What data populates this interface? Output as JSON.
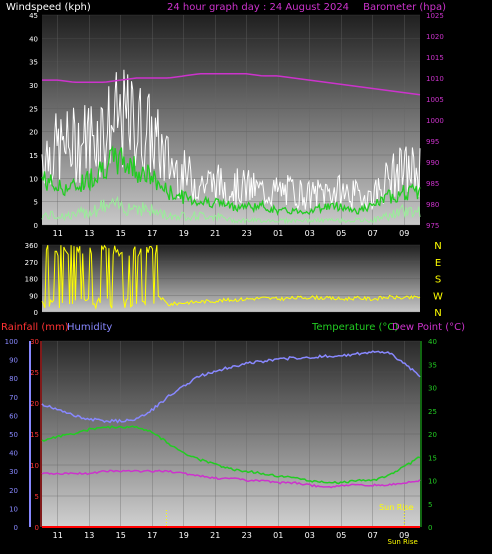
{
  "header": {
    "windspeed_label": "Windspeed (kph)",
    "title": "24 hour graph day : 24 August 2024",
    "barometer_label": "Barometer (hpa)"
  },
  "lower_header": {
    "rainfall_label": "Rainfall (mm)",
    "humidity_label": "Humidity",
    "temperature_label": "Temperature (°C)",
    "dewpoint_label": "Dew Point (°C)"
  },
  "sunrise_label": "Sun Rise",
  "x_ticks": [
    "11",
    "13",
    "15",
    "17",
    "19",
    "21",
    "23",
    "01",
    "03",
    "05",
    "07",
    "09"
  ],
  "colors": {
    "windspeed": "#ffffff",
    "wind_avg": "#22cc22",
    "wind_low": "#99ee99",
    "barometer": "#cc33cc",
    "direction": "#ffff00",
    "rainfall": "#ff0000",
    "humidity": "#8888ff",
    "temperature": "#22cc22",
    "dewpoint": "#cc33cc"
  },
  "chart_data": [
    {
      "type": "line",
      "name": "wind-barometer",
      "title": "24 hour graph day : 24 August 2024",
      "ylabel": "Windspeed (kph)",
      "y2label": "Barometer (hpa)",
      "ylim": [
        0,
        45
      ],
      "y2lim": [
        975,
        1025
      ],
      "y_ticks": [
        0,
        5,
        10,
        15,
        20,
        25,
        30,
        35,
        40,
        45
      ],
      "y2_ticks": [
        975,
        980,
        985,
        990,
        995,
        1000,
        1005,
        1010,
        1015,
        1020,
        1025
      ],
      "x_hours": [
        10,
        11,
        12,
        13,
        14,
        15,
        16,
        17,
        18,
        19,
        20,
        21,
        22,
        23,
        24,
        25,
        26,
        27,
        28,
        29,
        30,
        31,
        32,
        33,
        34
      ],
      "gust": [
        17,
        18,
        19,
        21,
        23,
        25,
        24,
        21,
        15,
        12,
        10,
        10,
        9,
        9,
        8,
        8,
        8,
        7,
        8,
        8,
        7,
        7,
        11,
        13,
        13
      ],
      "average": [
        10,
        8,
        8,
        10,
        13,
        14,
        12,
        10,
        7,
        6,
        5,
        5,
        4,
        4,
        4,
        3,
        3,
        3,
        4,
        4,
        3,
        4,
        6,
        7,
        7
      ],
      "low": [
        2,
        2,
        2,
        3,
        4,
        4,
        4,
        3,
        2,
        2,
        2,
        2,
        1,
        1,
        1,
        1,
        1,
        1,
        1,
        1,
        1,
        1,
        2,
        3,
        3
      ],
      "barometer": [
        1009.5,
        1009.5,
        1009,
        1009,
        1009,
        1009.5,
        1010,
        1010,
        1010,
        1010.5,
        1011,
        1011,
        1011,
        1011,
        1010.5,
        1010.5,
        1010,
        1009.5,
        1009,
        1008.5,
        1008,
        1007.5,
        1007,
        1006.5,
        1006
      ]
    },
    {
      "type": "line",
      "name": "wind-direction",
      "ylim": [
        0,
        360
      ],
      "y_ticks": [
        0,
        90,
        180,
        270,
        360
      ],
      "compass": [
        "N",
        "W",
        "S",
        "E",
        "N"
      ],
      "x_hours": [
        10,
        11,
        12,
        13,
        14,
        15,
        16,
        17,
        18,
        19,
        20,
        21,
        22,
        23,
        24,
        25,
        26,
        27,
        28,
        29,
        30,
        31,
        32,
        33,
        34
      ],
      "direction": [
        350,
        340,
        300,
        330,
        320,
        280,
        250,
        120,
        40,
        50,
        55,
        60,
        65,
        70,
        75,
        70,
        75,
        80,
        75,
        70,
        75,
        70,
        80,
        75,
        80
      ]
    },
    {
      "type": "line",
      "name": "temperature-humidity",
      "ylabel": "Rainfall (mm)",
      "y_left_ticks": [
        0,
        5,
        10,
        15,
        20,
        25,
        30
      ],
      "ylim_left": [
        0,
        30
      ],
      "humidity_ticks": [
        0,
        10,
        20,
        30,
        40,
        50,
        60,
        70,
        80,
        90,
        100
      ],
      "humidity_lim": [
        0,
        100
      ],
      "y_right_ticks": [
        0,
        5,
        10,
        15,
        20,
        25,
        30,
        35,
        40
      ],
      "ylim_right": [
        0,
        40
      ],
      "x_hours": [
        10,
        11,
        12,
        13,
        14,
        15,
        16,
        17,
        18,
        19,
        20,
        21,
        22,
        23,
        24,
        25,
        26,
        27,
        28,
        29,
        30,
        31,
        32,
        33,
        34
      ],
      "humidity": [
        66,
        63,
        60,
        58,
        57,
        57,
        58,
        63,
        70,
        76,
        81,
        84,
        86,
        88,
        89,
        90,
        91,
        91,
        92,
        92,
        93,
        94,
        94,
        88,
        81
      ],
      "temperature": [
        18.5,
        19.5,
        20,
        21,
        21.5,
        21.5,
        21.5,
        20.5,
        18,
        16,
        14.5,
        13.5,
        12.5,
        12,
        11.5,
        11,
        10.5,
        10,
        9.5,
        9.5,
        10,
        10,
        11,
        13,
        15
      ],
      "dewpoint": [
        11.5,
        11.5,
        11.5,
        11.5,
        12,
        12,
        12,
        12,
        12,
        11.5,
        11,
        10.5,
        10.5,
        10,
        10,
        9.5,
        9.5,
        9,
        8.5,
        9,
        9,
        9,
        9,
        9.5,
        10
      ],
      "rainfall": [
        0,
        0,
        0,
        0,
        0,
        0,
        0,
        0,
        0,
        0,
        0,
        0,
        0,
        0,
        0,
        0,
        0,
        0,
        0,
        0,
        0,
        0,
        0,
        0,
        0
      ]
    }
  ]
}
